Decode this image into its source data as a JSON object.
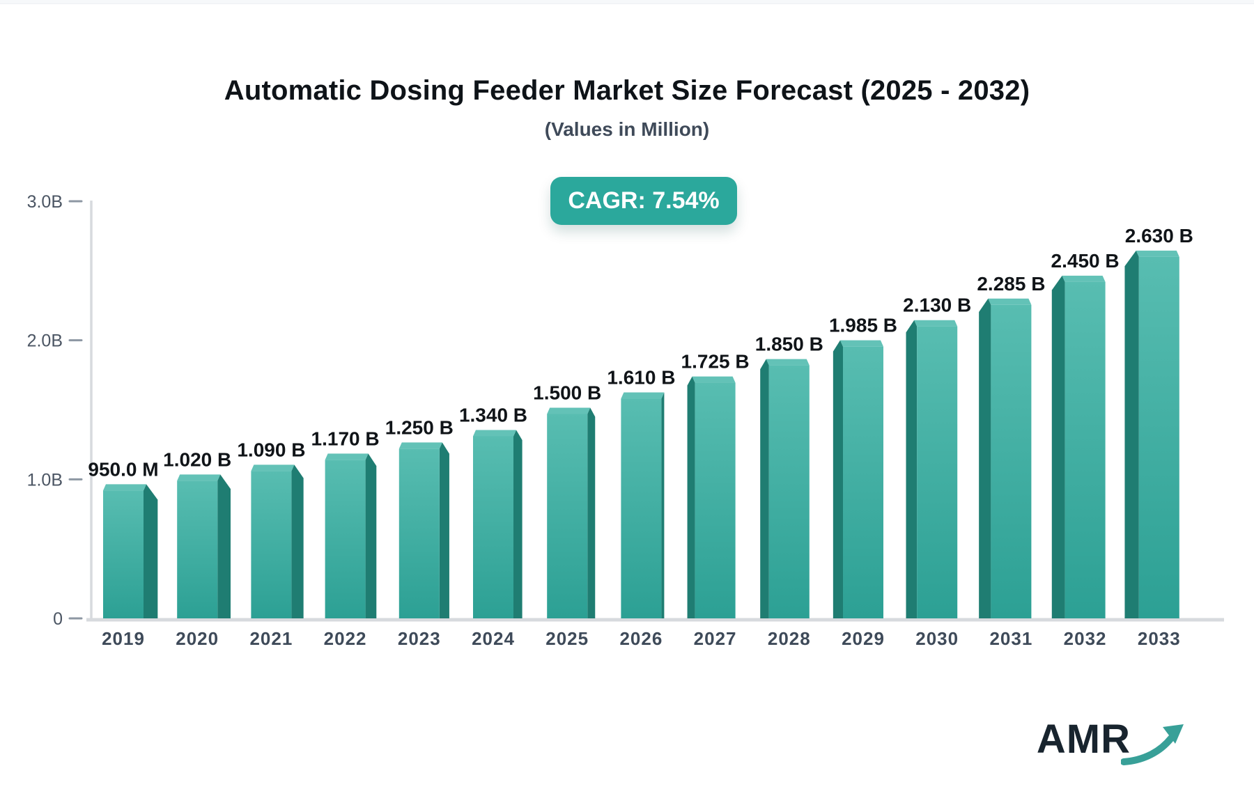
{
  "header": {
    "title": "Automatic Dosing Feeder Market Size Forecast (2025 - 2032)",
    "subtitle": "(Values in Million)"
  },
  "badge": {
    "label": "CAGR: 7.54%",
    "bg": "#2ba89c",
    "text_color": "#ffffff"
  },
  "logo": {
    "text": "AMR",
    "text_color": "#18242e",
    "arrow_color": "#38a098",
    "arrow_icon": "trend-up-arrow"
  },
  "chart_data": {
    "type": "bar",
    "title": "Automatic Dosing Feeder Market Size Forecast (2025 - 2032)",
    "subtitle": "(Values in Million)",
    "categories": [
      "2019",
      "2020",
      "2021",
      "2022",
      "2023",
      "2024",
      "2025",
      "2026",
      "2027",
      "2028",
      "2029",
      "2030",
      "2031",
      "2032",
      "2033"
    ],
    "values_billions": [
      0.95,
      1.02,
      1.09,
      1.17,
      1.25,
      1.34,
      1.5,
      1.61,
      1.725,
      1.85,
      1.985,
      2.13,
      2.285,
      2.45,
      2.63
    ],
    "value_labels": [
      "950.0 M",
      "1.020 B",
      "1.090 B",
      "1.170 B",
      "1.250 B",
      "1.340 B",
      "1.500 B",
      "1.610 B",
      "1.725 B",
      "1.850 B",
      "1.985 B",
      "2.130 B",
      "2.285 B",
      "2.450 B",
      "2.630 B"
    ],
    "ytick_labels": [
      "3.0B",
      "2.0B",
      "1.0B",
      "0"
    ],
    "ytick_values": [
      3,
      2,
      1,
      0
    ],
    "ylim": [
      0,
      3
    ],
    "xlabel": "",
    "ylabel": "",
    "grid": false,
    "legend": "none",
    "colors": {
      "bar_front_top": "#58bdb1",
      "bar_front_bottom": "#2ca094",
      "bar_side": "#1f7d72",
      "bar_top": "#63c2b7",
      "axis_line": "#d7dade",
      "tick_dash": "#8d97a3",
      "ytick_label": "#4b5563",
      "xtick_label": "#3e4a59",
      "value_label": "#101418"
    }
  }
}
